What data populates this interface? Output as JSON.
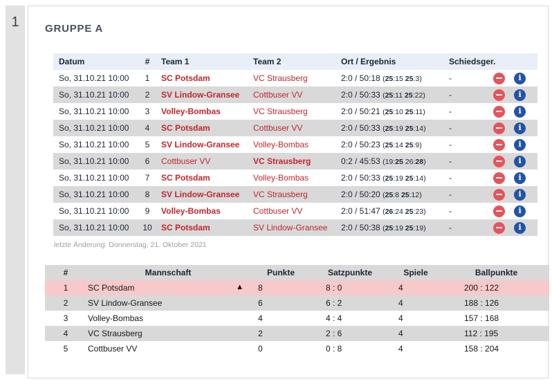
{
  "page": {
    "number": "1"
  },
  "group": {
    "title": "GRUPPE A"
  },
  "matches": {
    "headers": {
      "date": "Datum",
      "num": "#",
      "team1": "Team 1",
      "team2": "Team 2",
      "result": "Ort / Ergebnis",
      "referee": "Schiedsger."
    },
    "rows": [
      {
        "date": "So, 31.10.21 10:00",
        "num": "1",
        "team1": "SC Potsdam",
        "team1_winner": true,
        "team2": "VC Strausberg",
        "team2_winner": false,
        "score": "2:0 / 50:18",
        "sets": [
          {
            "home": "25",
            "away": "15",
            "winner": "home"
          },
          {
            "home": "25",
            "away": "3",
            "winner": "home"
          }
        ],
        "referee": "-"
      },
      {
        "date": "So, 31.10.21 10:00",
        "num": "2",
        "team1": "SV Lindow-Gransee",
        "team1_winner": true,
        "team2": "Cottbuser VV",
        "team2_winner": false,
        "score": "2:0 / 50:33",
        "sets": [
          {
            "home": "25",
            "away": "11",
            "winner": "home"
          },
          {
            "home": "25",
            "away": "22",
            "winner": "home"
          }
        ],
        "referee": "-"
      },
      {
        "date": "So, 31.10.21 10:00",
        "num": "3",
        "team1": "Volley-Bombas",
        "team1_winner": true,
        "team2": "VC Strausberg",
        "team2_winner": false,
        "score": "2:0 / 50:21",
        "sets": [
          {
            "home": "25",
            "away": "10",
            "winner": "home"
          },
          {
            "home": "25",
            "away": "11",
            "winner": "home"
          }
        ],
        "referee": "-"
      },
      {
        "date": "So, 31.10.21 10:00",
        "num": "4",
        "team1": "SC Potsdam",
        "team1_winner": true,
        "team2": "Cottbuser VV",
        "team2_winner": false,
        "score": "2:0 / 50:33",
        "sets": [
          {
            "home": "25",
            "away": "19",
            "winner": "home"
          },
          {
            "home": "25",
            "away": "14",
            "winner": "home"
          }
        ],
        "referee": "-"
      },
      {
        "date": "So, 31.10.21 10:00",
        "num": "5",
        "team1": "SV Lindow-Gransee",
        "team1_winner": true,
        "team2": "Volley-Bombas",
        "team2_winner": false,
        "score": "2:0 / 50:23",
        "sets": [
          {
            "home": "25",
            "away": "14",
            "winner": "home"
          },
          {
            "home": "25",
            "away": "9",
            "winner": "home"
          }
        ],
        "referee": "-"
      },
      {
        "date": "So, 31.10.21 10:00",
        "num": "6",
        "team1": "Cottbuser VV",
        "team1_winner": false,
        "team2": "VC Strausberg",
        "team2_winner": true,
        "score": "0:2 / 45:53",
        "sets": [
          {
            "home": "19",
            "away": "25",
            "winner": "away"
          },
          {
            "home": "26",
            "away": "28",
            "winner": "away"
          }
        ],
        "referee": "-"
      },
      {
        "date": "So, 31.10.21 10:00",
        "num": "7",
        "team1": "SC Potsdam",
        "team1_winner": true,
        "team2": "Volley-Bombas",
        "team2_winner": false,
        "score": "2:0 / 50:33",
        "sets": [
          {
            "home": "25",
            "away": "19",
            "winner": "home"
          },
          {
            "home": "25",
            "away": "14",
            "winner": "home"
          }
        ],
        "referee": "-"
      },
      {
        "date": "So, 31.10.21 10:00",
        "num": "8",
        "team1": "SV Lindow-Gransee",
        "team1_winner": true,
        "team2": "VC Strausberg",
        "team2_winner": false,
        "score": "2:0 / 50:20",
        "sets": [
          {
            "home": "25",
            "away": "8",
            "winner": "home"
          },
          {
            "home": "25",
            "away": "12",
            "winner": "home"
          }
        ],
        "referee": "-"
      },
      {
        "date": "So, 31.10.21 10:00",
        "num": "9",
        "team1": "Volley-Bombas",
        "team1_winner": true,
        "team2": "Cottbuser VV",
        "team2_winner": false,
        "score": "2:0 / 51:47",
        "sets": [
          {
            "home": "26",
            "away": "24",
            "winner": "home"
          },
          {
            "home": "25",
            "away": "23",
            "winner": "home"
          }
        ],
        "referee": "-"
      },
      {
        "date": "So, 31.10.21 10:00",
        "num": "10",
        "team1": "SC Potsdam",
        "team1_winner": true,
        "team2": "SV Lindow-Gransee",
        "team2_winner": false,
        "score": "2:0 / 50:38",
        "sets": [
          {
            "home": "25",
            "away": "19",
            "winner": "home"
          },
          {
            "home": "25",
            "away": "19",
            "winner": "home"
          }
        ],
        "referee": "-"
      }
    ],
    "footnote": "letzte Änderung: Donnerstag, 21. Oktober 2021"
  },
  "standings": {
    "headers": {
      "rank": "#",
      "team": "Mannschaft",
      "points": "Punkte",
      "sets": "Satzpunkte",
      "games": "Spiele",
      "balls": "Ballpunkte"
    },
    "rows": [
      {
        "rank": "1",
        "team": "SC Potsdam",
        "trend": "▲",
        "points": "8",
        "sets": "8 : 0",
        "games": "4",
        "balls": "200 : 122",
        "highlight": true
      },
      {
        "rank": "2",
        "team": "SV Lindow-Gransee",
        "trend": "",
        "points": "6",
        "sets": "6 : 2",
        "games": "4",
        "balls": "188 : 126",
        "highlight": false
      },
      {
        "rank": "3",
        "team": "Volley-Bombas",
        "trend": "",
        "points": "4",
        "sets": "4 : 4",
        "games": "4",
        "balls": "157 : 168",
        "highlight": false
      },
      {
        "rank": "4",
        "team": "VC Strausberg",
        "trend": "",
        "points": "2",
        "sets": "2 : 6",
        "games": "4",
        "balls": "112 : 195",
        "highlight": false
      },
      {
        "rank": "5",
        "team": "Cottbuser VV",
        "trend": "",
        "points": "0",
        "sets": "0 : 8",
        "games": "4",
        "balls": "158 : 204",
        "highlight": false
      }
    ]
  },
  "icons": {
    "remove": "minus-circle",
    "info": "info-circle",
    "info_glyph": "i",
    "trend_up_glyph": "▲"
  },
  "colors": {
    "team_red": "#c2262c",
    "remove_icon_red": "#e4555a",
    "info_icon_blue": "#2154a3",
    "highlight_pink": "#f8c9c9",
    "header_blue": "#e9eff8",
    "row_gray": "#d9d9d9",
    "strip_gray": "#e2e2e2"
  }
}
